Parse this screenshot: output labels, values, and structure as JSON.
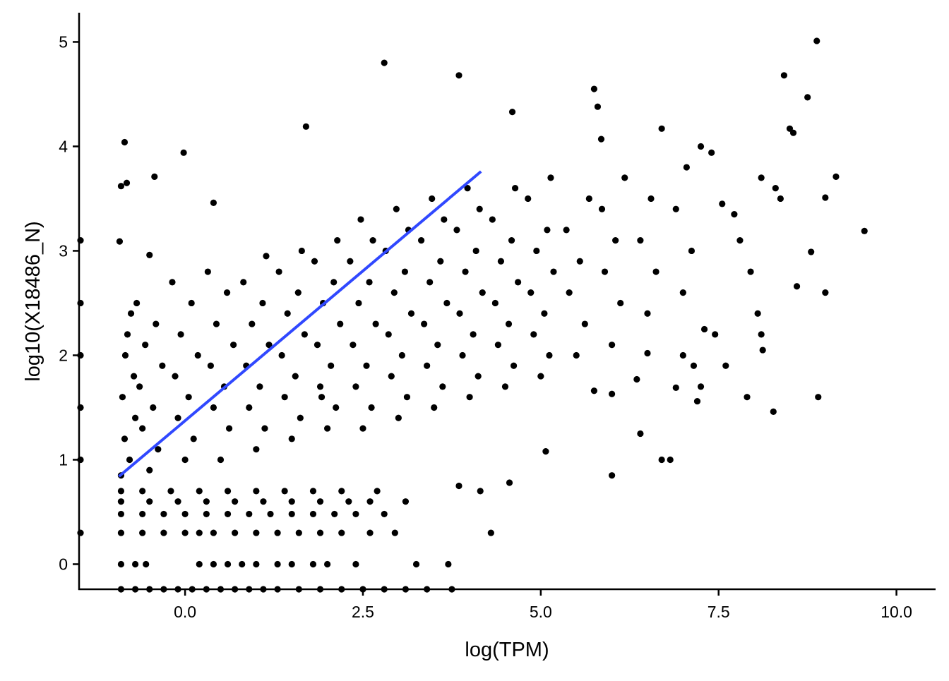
{
  "chart_data": {
    "type": "scatter",
    "x_label": "log(TPM)",
    "y_label": "log10(X18486_N)",
    "color": "#000000",
    "xlim": [
      -1.49,
      10.55
    ],
    "ylim": [
      -0.24,
      5.28
    ],
    "xticks": [
      {
        "value": 0,
        "label": "0.0"
      },
      {
        "value": 2.5,
        "label": "2.5"
      },
      {
        "value": 5,
        "label": "5.0"
      },
      {
        "value": 7.5,
        "label": "7.5"
      },
      {
        "value": 10,
        "label": "10.0"
      }
    ],
    "yticks": [
      0,
      1,
      2,
      3,
      4,
      5
    ],
    "x": [
      2.8,
      8.88,
      3.85,
      8.42,
      5.75,
      8.75,
      4.6,
      5.8,
      1.7,
      -0.85,
      -0.02,
      8.5,
      8.55,
      6.7,
      5.85,
      7.4,
      7.25,
      9.55,
      9.15,
      9.0,
      9.0,
      8.9,
      8.27,
      6.0,
      6.7,
      6.82,
      5.07,
      4.3,
      4.56,
      -0.9,
      -0.82,
      -0.43,
      0.4,
      -0.92,
      -0.5,
      7.9,
      7.6,
      7.2,
      7.25,
      6.9,
      6.4,
      7.3,
      7.45,
      8.6,
      8.8,
      8.12,
      8.1,
      8.05,
      7.95,
      8.3,
      8.37,
      8.1,
      7.72,
      7.55,
      7.8,
      7.0,
      7.15,
      6.5,
      6.35,
      6.0,
      5.75,
      1.92,
      3.85,
      4.15,
      -0.9,
      -0.7,
      -0.5,
      -0.3,
      -0.1,
      0.1,
      0.3,
      0.5,
      0.7,
      0.9,
      1.1,
      1.3,
      1.6,
      1.9,
      2.2,
      2.5,
      2.8,
      3.1,
      3.4,
      3.75,
      -0.9,
      -0.7,
      -0.55,
      0.2,
      0.4,
      0.6,
      0.8,
      1.0,
      1.3,
      1.5,
      1.8,
      2.0,
      2.4,
      3.25,
      3.7,
      -0.9,
      -0.6,
      -0.3,
      0,
      0.2,
      0.4,
      0.7,
      1.0,
      1.3,
      1.6,
      1.9,
      2.2,
      2.6,
      2.95,
      -0.9,
      -0.6,
      -0.3,
      0,
      0.3,
      0.6,
      0.9,
      1.2,
      1.5,
      1.8,
      2.1,
      2.4,
      2.8,
      -0.9,
      -0.5,
      -0.1,
      0.3,
      0.7,
      1.1,
      1.5,
      1.9,
      2.3,
      2.6,
      3.1,
      -0.9,
      -0.6,
      -0.2,
      0.2,
      0.6,
      1.0,
      1.4,
      1.8,
      2.2,
      2.7,
      -1.47,
      -1.47,
      -1.47,
      -1.47,
      -1.47,
      -1.47,
      -0.9,
      -0.78,
      -0.85,
      -0.7,
      -0.88,
      -0.72,
      -0.84,
      -0.81,
      -0.76,
      -0.5,
      -0.38,
      -0.6,
      -0.45,
      -0.64,
      -0.32,
      -0.56,
      -0.41,
      -0.68,
      0,
      0.12,
      -0.1,
      0.05,
      -0.14,
      0.18,
      -0.06,
      0.09,
      -0.18,
      0.5,
      0.62,
      0.4,
      0.55,
      0.36,
      0.68,
      0.44,
      0.59,
      0.32,
      1.0,
      1.12,
      0.9,
      1.05,
      0.86,
      1.18,
      0.94,
      1.09,
      0.82,
      1.14,
      1.5,
      1.62,
      1.4,
      1.55,
      1.36,
      1.68,
      1.44,
      1.59,
      1.32,
      1.64,
      2.0,
      2.12,
      1.9,
      2.05,
      1.86,
      2.18,
      1.94,
      2.09,
      1.82,
      2.14,
      2.5,
      2.62,
      2.4,
      2.55,
      2.36,
      2.68,
      2.44,
      2.59,
      2.32,
      2.64,
      2.47,
      3.0,
      3.12,
      2.9,
      3.05,
      2.86,
      3.18,
      2.94,
      3.09,
      2.82,
      3.14,
      2.97,
      3.5,
      3.62,
      3.4,
      3.55,
      3.36,
      3.68,
      3.44,
      3.59,
      3.32,
      3.64,
      3.47,
      4.0,
      4.12,
      3.9,
      4.05,
      3.86,
      4.18,
      3.94,
      4.09,
      3.82,
      4.14,
      3.97,
      4.5,
      4.62,
      4.4,
      4.55,
      4.36,
      4.68,
      4.44,
      4.59,
      4.32,
      4.64,
      5.0,
      5.12,
      4.9,
      5.05,
      4.86,
      5.18,
      4.94,
      5.09,
      4.82,
      5.14,
      5.5,
      5.62,
      5.4,
      5.55,
      5.36,
      5.68,
      6.0,
      6.12,
      5.9,
      6.05,
      5.86,
      6.18,
      6.5,
      6.62,
      6.4,
      6.55,
      7.0,
      7.12,
      6.9,
      7.05
    ],
    "values": [
      4.8,
      5.01,
      4.68,
      4.68,
      4.55,
      4.47,
      4.33,
      4.38,
      4.19,
      4.04,
      3.94,
      4.17,
      4.13,
      4.17,
      4.07,
      3.94,
      4.0,
      3.19,
      3.71,
      3.51,
      2.6,
      1.6,
      1.46,
      0.85,
      1.0,
      1.0,
      1.08,
      0.3,
      0.78,
      3.62,
      3.65,
      3.71,
      3.46,
      3.09,
      2.96,
      1.6,
      1.9,
      1.56,
      1.7,
      1.69,
      1.25,
      2.25,
      2.2,
      2.66,
      2.99,
      2.05,
      2.2,
      2.4,
      2.8,
      3.6,
      3.5,
      3.7,
      3.35,
      3.45,
      3.1,
      2.0,
      1.9,
      2.02,
      1.77,
      1.63,
      1.66,
      1.6,
      0.75,
      0.7,
      -0.24,
      -0.24,
      -0.24,
      -0.24,
      -0.24,
      -0.24,
      -0.24,
      -0.24,
      -0.24,
      -0.24,
      -0.24,
      -0.24,
      -0.24,
      -0.24,
      -0.24,
      -0.24,
      -0.24,
      -0.24,
      -0.24,
      -0.24,
      0,
      0,
      0,
      0,
      0,
      0,
      0,
      0,
      0,
      0,
      0,
      0,
      0,
      0,
      0,
      0.3,
      0.3,
      0.3,
      0.3,
      0.3,
      0.3,
      0.3,
      0.3,
      0.3,
      0.3,
      0.3,
      0.3,
      0.3,
      0.3,
      0.48,
      0.48,
      0.48,
      0.48,
      0.48,
      0.48,
      0.48,
      0.48,
      0.48,
      0.48,
      0.48,
      0.48,
      0.48,
      0.6,
      0.6,
      0.6,
      0.6,
      0.6,
      0.6,
      0.6,
      0.6,
      0.6,
      0.6,
      0.6,
      0.7,
      0.7,
      0.7,
      0.7,
      0.7,
      0.7,
      0.7,
      0.7,
      0.7,
      0.7,
      0.3,
      1.0,
      1.5,
      2.0,
      2.5,
      3.1,
      0.85,
      1.0,
      1.2,
      1.4,
      1.6,
      1.8,
      2.0,
      2.2,
      2.4,
      0.9,
      1.1,
      1.3,
      1.5,
      1.7,
      1.9,
      2.1,
      2.3,
      2.5,
      1.0,
      1.2,
      1.4,
      1.6,
      1.8,
      2.0,
      2.2,
      2.5,
      2.7,
      1.0,
      1.3,
      1.5,
      1.7,
      1.9,
      2.1,
      2.3,
      2.6,
      2.8,
      1.1,
      1.3,
      1.5,
      1.7,
      1.9,
      2.1,
      2.3,
      2.5,
      2.7,
      2.95,
      1.2,
      1.4,
      1.6,
      1.8,
      2.0,
      2.2,
      2.4,
      2.6,
      2.8,
      3.0,
      1.3,
      1.5,
      1.7,
      1.9,
      2.1,
      2.3,
      2.5,
      2.7,
      2.9,
      3.1,
      1.3,
      1.5,
      1.7,
      1.9,
      2.1,
      2.3,
      2.5,
      2.7,
      2.9,
      3.1,
      3.3,
      1.4,
      1.6,
      1.8,
      2.0,
      2.2,
      2.4,
      2.6,
      2.8,
      3.0,
      3.2,
      3.4,
      1.5,
      1.7,
      1.9,
      2.1,
      2.3,
      2.5,
      2.7,
      2.9,
      3.1,
      3.3,
      3.5,
      1.6,
      1.8,
      2.0,
      2.2,
      2.4,
      2.6,
      2.8,
      3.0,
      3.2,
      3.4,
      3.6,
      1.7,
      1.9,
      2.1,
      2.3,
      2.5,
      2.7,
      2.9,
      3.1,
      3.3,
      3.6,
      1.8,
      2.0,
      2.2,
      2.4,
      2.6,
      2.8,
      3.0,
      3.2,
      3.5,
      3.7,
      2.0,
      2.3,
      2.6,
      2.9,
      3.2,
      3.5,
      2.1,
      2.5,
      2.8,
      3.1,
      3.4,
      3.7,
      2.4,
      2.8,
      3.1,
      3.5,
      2.6,
      3.0,
      3.4,
      3.8
    ],
    "fit_line": {
      "x": [
        -0.93,
        4.16
      ],
      "values": [
        0.84,
        3.76
      ],
      "color": "#3048ff"
    }
  }
}
